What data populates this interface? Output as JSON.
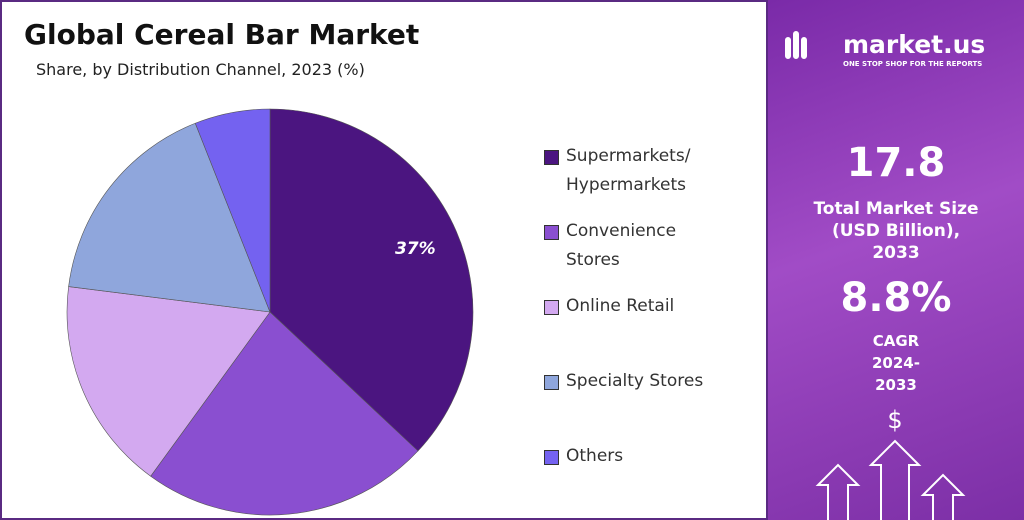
{
  "chart_data": {
    "type": "pie",
    "title": "Global Cereal Bar Market",
    "subtitle": "Share, by Distribution Channel, 2023 (%)",
    "categories": [
      "Supermarkets/ Hypermarkets",
      "Convenience Stores",
      "Online Retail",
      "Specialty Stores",
      "Others"
    ],
    "values": [
      37,
      23,
      17,
      17,
      6
    ],
    "value_labels": [
      "37%",
      null,
      null,
      null,
      null
    ],
    "colors": [
      "#4b1580",
      "#8a4fd0",
      "#d3a9f0",
      "#8fa6dc",
      "#7462f0"
    ],
    "legend": "right"
  },
  "sidebar": {
    "brand": "market.us",
    "tagline": "ONE STOP SHOP FOR THE REPORTS",
    "market_size": "17.8",
    "market_size_label": "Total Market Size (USD Billion), 2033",
    "cagr": "8.8%",
    "cagr_label": "CAGR 2024-2033"
  }
}
